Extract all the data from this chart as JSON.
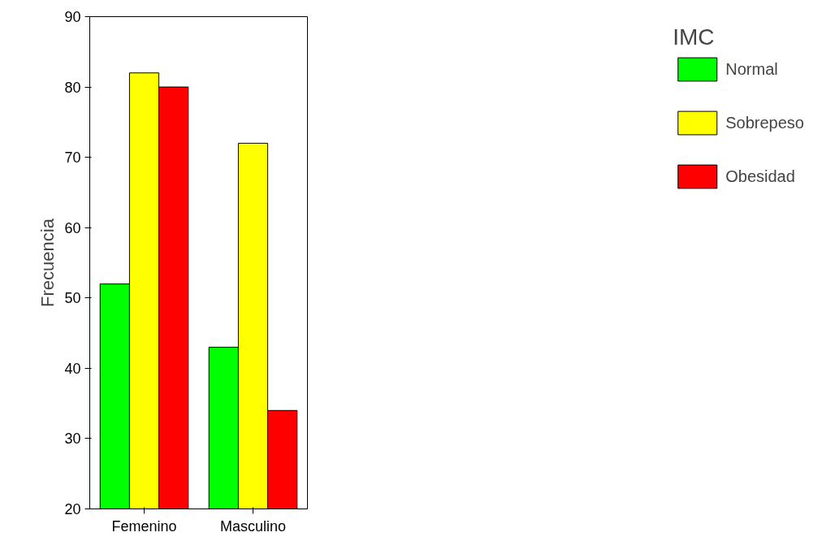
{
  "chart_data": {
    "type": "bar",
    "categories": [
      "Femenino",
      "Masculino"
    ],
    "ylabel": "Frecuencia",
    "legend_title": "IMC",
    "legend": "right",
    "grid": false,
    "ylim": [
      20,
      90
    ],
    "yticks": [
      20,
      30,
      40,
      50,
      60,
      70,
      80,
      90
    ],
    "series": [
      {
        "name": "Normal",
        "color": "#00ff00",
        "values": [
          52,
          43
        ]
      },
      {
        "name": "Sobrepeso",
        "color": "#ffff00",
        "values": [
          82,
          72
        ]
      },
      {
        "name": "Obesidad",
        "color": "#ff0000",
        "values": [
          80,
          34
        ]
      }
    ]
  }
}
